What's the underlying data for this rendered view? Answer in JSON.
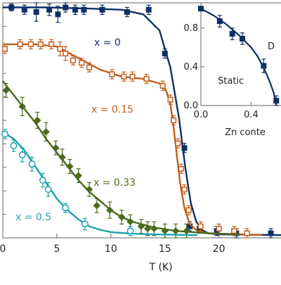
{
  "chart_data": [
    {
      "type": "scatter",
      "title": "",
      "xlabel": "T (K)",
      "ylabel": "",
      "xlim": [
        0,
        26
      ],
      "ylim": [
        0,
        1.02
      ],
      "x_ticks": [
        0,
        5,
        10,
        15,
        20
      ],
      "x_tick_labels": [
        "0",
        "5",
        "10",
        "15",
        "20"
      ],
      "grid": false,
      "series": [
        {
          "name": "x = 0",
          "color": "#0e2f68",
          "marker": "filled-square",
          "x": [
            0.8,
            2,
            3.1,
            4.3,
            5.1,
            5.8,
            6.7,
            7.5,
            9.2,
            11.5,
            13.5,
            15,
            16.8,
            17.3,
            18.2,
            19.8,
            21.6,
            24.8
          ],
          "y": [
            1.0,
            0.99,
            0.98,
            0.99,
            0.97,
            1.0,
            0.99,
            0.99,
            0.99,
            0.98,
            0.99,
            0.8,
            0.39,
            0.05,
            0.04,
            0.03,
            0.02,
            0.02
          ],
          "errors": [
            0.015,
            0.02,
            0.04,
            0.025,
            0.035,
            0.02,
            0.02,
            0.02,
            0.02,
            0.02,
            0.02,
            0.02,
            0.02,
            0.02,
            0.02,
            0.02,
            0.02,
            0.02
          ],
          "fit_x": [
            0,
            4,
            8,
            11,
            13,
            14.5,
            15.5,
            16.3,
            16.9,
            17.4,
            17.9,
            18.4,
            19,
            20,
            26
          ],
          "fit_y": [
            1.0,
            1.0,
            0.995,
            0.99,
            0.97,
            0.9,
            0.74,
            0.52,
            0.3,
            0.15,
            0.07,
            0.035,
            0.02,
            0.015,
            0.012
          ]
        },
        {
          "name": "x = 0.15",
          "color": "#c25e1a",
          "marker": "open-square",
          "x": [
            0.2,
            1.6,
            2.6,
            3.5,
            4.5,
            5.3,
            5.8,
            6.5,
            7.3,
            8,
            10.1,
            11.2,
            12,
            13.3,
            14.8,
            15.5,
            15.8,
            16.2,
            16.5,
            16.8,
            17.2,
            18.3,
            20,
            21.4,
            22.6
          ],
          "y": [
            0.82,
            0.84,
            0.84,
            0.84,
            0.84,
            0.82,
            0.8,
            0.77,
            0.76,
            0.74,
            0.71,
            0.7,
            0.7,
            0.69,
            0.66,
            0.6,
            0.51,
            0.41,
            0.3,
            0.21,
            0.12,
            0.05,
            0.04,
            0.03,
            0.02
          ],
          "errors": [
            0.02,
            0.02,
            0.02,
            0.02,
            0.02,
            0.03,
            0.03,
            0.02,
            0.02,
            0.02,
            0.02,
            0.02,
            0.02,
            0.02,
            0.02,
            0.02,
            0.02,
            0.02,
            0.02,
            0.02,
            0.02,
            0.02,
            0.02,
            0.02,
            0.02
          ],
          "fit_x": [
            0,
            3,
            5,
            7,
            9,
            11,
            13,
            14.5,
            15.1,
            15.5,
            15.8,
            16.1,
            16.4,
            16.8,
            17.3,
            18,
            19,
            22,
            24
          ],
          "fit_y": [
            0.84,
            0.84,
            0.83,
            0.78,
            0.73,
            0.7,
            0.69,
            0.67,
            0.64,
            0.58,
            0.48,
            0.36,
            0.24,
            0.13,
            0.06,
            0.03,
            0.02,
            0.015,
            0.012
          ]
        },
        {
          "name": "x = 0.33",
          "color": "#4b6a1c",
          "marker": "filled-diamond",
          "x": [
            0.3,
            1.8,
            3.2,
            4,
            4.9,
            5.5,
            6.2,
            7,
            8,
            8.7,
            9.9,
            11,
            11.8,
            12.8,
            13.4,
            14,
            15,
            16,
            17
          ],
          "y": [
            0.64,
            0.57,
            0.51,
            0.46,
            0.39,
            0.35,
            0.31,
            0.27,
            0.21,
            0.14,
            0.12,
            0.09,
            0.07,
            0.05,
            0.04,
            0.04,
            0.03,
            0.03,
            0.03
          ],
          "errors": [
            0.03,
            0.04,
            0.035,
            0.04,
            0.03,
            0.035,
            0.03,
            0.03,
            0.03,
            0.03,
            0.035,
            0.03,
            0.03,
            0.03,
            0.03,
            0.03,
            0.03,
            0.03,
            0.03
          ],
          "fit_x": [
            0,
            1,
            2,
            3,
            4,
            5,
            6,
            7,
            8,
            9,
            10,
            11,
            12,
            14,
            16,
            19,
            22
          ],
          "fit_y": [
            0.68,
            0.62,
            0.56,
            0.5,
            0.43,
            0.37,
            0.31,
            0.25,
            0.2,
            0.16,
            0.12,
            0.09,
            0.07,
            0.045,
            0.03,
            0.02,
            0.015
          ]
        },
        {
          "name": "x = 0.5",
          "color": "#1aa3ad",
          "marker": "open-circle",
          "x": [
            0.2,
            1,
            1.8,
            2.7,
            3.7,
            4.2,
            5.8,
            7.6,
            11.8
          ],
          "y": [
            0.45,
            0.4,
            0.36,
            0.32,
            0.25,
            0.21,
            0.13,
            0.06,
            0.03
          ],
          "errors": [
            0.02,
            0.025,
            0.03,
            0.03,
            0.03,
            0.03,
            0.02,
            0.025,
            0.02
          ],
          "fit_x": [
            0,
            1,
            2,
            3,
            4,
            5,
            6,
            7,
            8,
            9,
            10,
            12,
            14,
            18
          ],
          "fit_y": [
            0.46,
            0.43,
            0.38,
            0.31,
            0.24,
            0.17,
            0.12,
            0.08,
            0.05,
            0.035,
            0.025,
            0.018,
            0.015,
            0.012
          ]
        }
      ]
    },
    {
      "type": "line",
      "title": "",
      "xlabel": "Zn conte",
      "ylabel": "",
      "xlim": [
        0,
        0.66
      ],
      "ylim": [
        0,
        1.06
      ],
      "x_ticks": [
        0,
        0.4
      ],
      "x_tick_labels": [
        "0.0",
        "0.4"
      ],
      "y_ticks": [
        0,
        0.4,
        0.8
      ],
      "y_tick_labels": [
        "0.0",
        "0.4",
        "0.8"
      ],
      "annotations": [
        "Static",
        "D"
      ],
      "series": [
        {
          "color": "#0e2f68",
          "marker": "filled-square",
          "x": [
            0,
            0.15,
            0.25,
            0.33,
            0.5,
            0.6
          ],
          "y": [
            1.0,
            0.87,
            0.74,
            0.69,
            0.41,
            0.05
          ],
          "errors": [
            0.02,
            0.06,
            0.06,
            0.06,
            0.07,
            0.05
          ],
          "fit_x": [
            0,
            0.1,
            0.2,
            0.3,
            0.4,
            0.45,
            0.5,
            0.55,
            0.58,
            0.6
          ],
          "fit_y": [
            1.0,
            0.93,
            0.84,
            0.73,
            0.6,
            0.51,
            0.39,
            0.24,
            0.13,
            0.0
          ]
        }
      ]
    }
  ]
}
